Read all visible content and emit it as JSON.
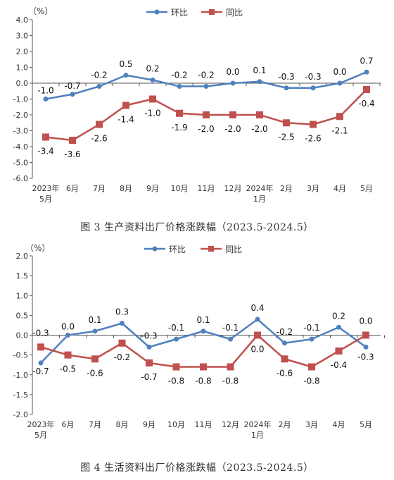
{
  "colors": {
    "mom": "#4f81bd",
    "yoy": "#c0504d",
    "grid": "#d9d9d9",
    "axis": "#555555"
  },
  "chart_data": [
    {
      "type": "line",
      "caption": "图 3  生产资料出厂价格涨跌幅（2023.5-2024.5）",
      "unit_label": "（%）",
      "categories": [
        "2023年\n5月",
        "6月",
        "7月",
        "8月",
        "9月",
        "10月",
        "11月",
        "12月",
        "2024年\n1月",
        "2月",
        "3月",
        "4月",
        "5月"
      ],
      "ylim": [
        -6.0,
        4.0
      ],
      "yticks": [
        "4.0",
        "3.0",
        "2.0",
        "1.0",
        "0.0",
        "-1.0",
        "-2.0",
        "-3.0",
        "-4.0",
        "-5.0",
        "-6.0"
      ],
      "ytick_values": [
        4,
        3,
        2,
        1,
        0,
        -1,
        -2,
        -3,
        -4,
        -5,
        -6
      ],
      "grid": false,
      "legend_position": "top-center",
      "series": [
        {
          "name": "环比",
          "color": "#4f81bd",
          "marker": "circle",
          "values": [
            -1.0,
            -0.7,
            -0.2,
            0.5,
            0.2,
            -0.2,
            -0.2,
            0.0,
            0.1,
            -0.3,
            -0.3,
            0.0,
            0.7
          ],
          "labels": [
            "-1.0",
            "-0.7",
            "-0.2",
            "0.5",
            "0.2",
            "-0.2",
            "-0.2",
            "0.0",
            "0.1",
            "-0.3",
            "-0.3",
            "0.0",
            "0.7"
          ]
        },
        {
          "name": "同比",
          "color": "#c0504d",
          "marker": "square",
          "values": [
            -3.4,
            -3.6,
            -2.6,
            -1.4,
            -1.0,
            -1.9,
            -2.0,
            -2.0,
            -2.0,
            -2.5,
            -2.6,
            -2.1,
            -0.4
          ],
          "labels": [
            "-3.4",
            "-3.6",
            "-2.6",
            "-1.4",
            "-1.0",
            "-1.9",
            "-2.0",
            "-2.0",
            "-2.0",
            "-2.5",
            "-2.6",
            "-2.1",
            "-0.4"
          ]
        }
      ]
    },
    {
      "type": "line",
      "caption": "图 4  生活资料出厂价格涨跌幅（2023.5-2024.5）",
      "unit_label": "（%）",
      "categories": [
        "2023年\n5月",
        "6月",
        "7月",
        "8月",
        "9月",
        "10月",
        "11月",
        "12月",
        "2024年\n1月",
        "2月",
        "3月",
        "4月",
        "5月"
      ],
      "ylim": [
        -2.0,
        2.0
      ],
      "yticks": [
        "2.0",
        "1.5",
        "1.0",
        "0.5",
        "0.0",
        "-0.5",
        "-1.0",
        "-1.5",
        "-2.0"
      ],
      "ytick_values": [
        2,
        1.5,
        1,
        0.5,
        0,
        -0.5,
        -1,
        -1.5,
        -2
      ],
      "grid": false,
      "legend_position": "top-center",
      "series": [
        {
          "name": "环比",
          "color": "#4f81bd",
          "marker": "circle",
          "values": [
            -0.7,
            0.0,
            0.1,
            0.3,
            -0.3,
            -0.1,
            0.1,
            -0.1,
            0.4,
            -0.2,
            -0.1,
            0.2,
            -0.3
          ],
          "labels": [
            "-0.7",
            "0.0",
            "0.1",
            "0.3",
            "-0.3",
            "-0.1",
            "0.1",
            "-0.1",
            "0.4",
            "-0.2",
            "-0.1",
            "0.2",
            "-0.3"
          ]
        },
        {
          "name": "同比",
          "color": "#c0504d",
          "marker": "square",
          "values": [
            -0.3,
            -0.5,
            -0.6,
            -0.2,
            -0.7,
            -0.8,
            -0.8,
            -0.8,
            0.0,
            -0.6,
            -0.8,
            -0.4,
            0.0
          ],
          "labels": [
            "-0.3",
            "-0.5",
            "-0.6",
            "-0.2",
            "-0.7",
            "-0.8",
            "-0.8",
            "-0.8",
            "0.0",
            "-0.6",
            "-0.8",
            "-0.4",
            "0.0"
          ]
        }
      ]
    }
  ]
}
